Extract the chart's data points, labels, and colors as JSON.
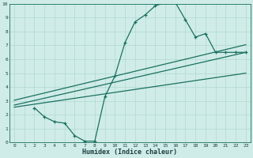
{
  "xlabel": "Humidex (Indice chaleur)",
  "bg_color": "#d0ece8",
  "line_color": "#1a7060",
  "grid_color": "#b0d8d0",
  "xlim": [
    -0.5,
    23.5
  ],
  "ylim": [
    0,
    10
  ],
  "xticks": [
    0,
    1,
    2,
    3,
    4,
    5,
    6,
    7,
    8,
    9,
    10,
    11,
    12,
    13,
    14,
    15,
    16,
    17,
    18,
    19,
    20,
    21,
    22,
    23
  ],
  "yticks": [
    0,
    1,
    2,
    3,
    4,
    5,
    6,
    7,
    8,
    9,
    10
  ],
  "curve_x": [
    2,
    3,
    4,
    5,
    6,
    7,
    8,
    9,
    10,
    11,
    12,
    13,
    14,
    15,
    16,
    17,
    18,
    19,
    20,
    21,
    22,
    23
  ],
  "curve_y": [
    2.5,
    1.85,
    1.5,
    1.4,
    0.5,
    0.1,
    0.1,
    3.3,
    4.8,
    7.2,
    8.7,
    9.2,
    9.85,
    10.1,
    10.1,
    8.85,
    7.6,
    7.85,
    6.5,
    6.5,
    6.5,
    6.5
  ],
  "line1_x": [
    0,
    23
  ],
  "line1_y": [
    2.55,
    5.0
  ],
  "line2_x": [
    0,
    23
  ],
  "line2_y": [
    2.7,
    6.5
  ],
  "line3_x": [
    0,
    23
  ],
  "line3_y": [
    3.05,
    7.05
  ]
}
